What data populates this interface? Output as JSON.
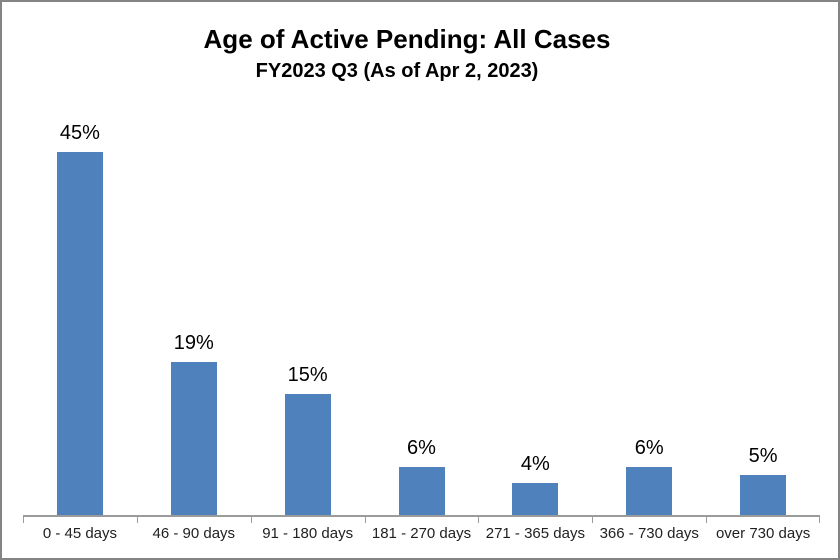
{
  "chart_data": {
    "type": "bar",
    "title": "Age of Active Pending: All Cases",
    "subtitle": "FY2023 Q3 (As of Apr 2, 2023)",
    "categories": [
      "0 - 45 days",
      "46 - 90 days",
      "91 - 180 days",
      "181 - 270 days",
      "271 - 365 days",
      "366 - 730 days",
      "over 730 days"
    ],
    "values": [
      45,
      19,
      15,
      6,
      4,
      6,
      5
    ],
    "data_labels": [
      "45%",
      "19%",
      "15%",
      "6%",
      "4%",
      "6%",
      "5%"
    ],
    "xlabel": "",
    "ylabel": "",
    "ylim": [
      0,
      45
    ],
    "grid": "off",
    "legend": "none",
    "bar_color": "#4F81BD",
    "axis_color": "#9B9B9B",
    "label_color": "#000000",
    "frame_border_color": "#848484",
    "background_color": "#FFFFFF"
  }
}
